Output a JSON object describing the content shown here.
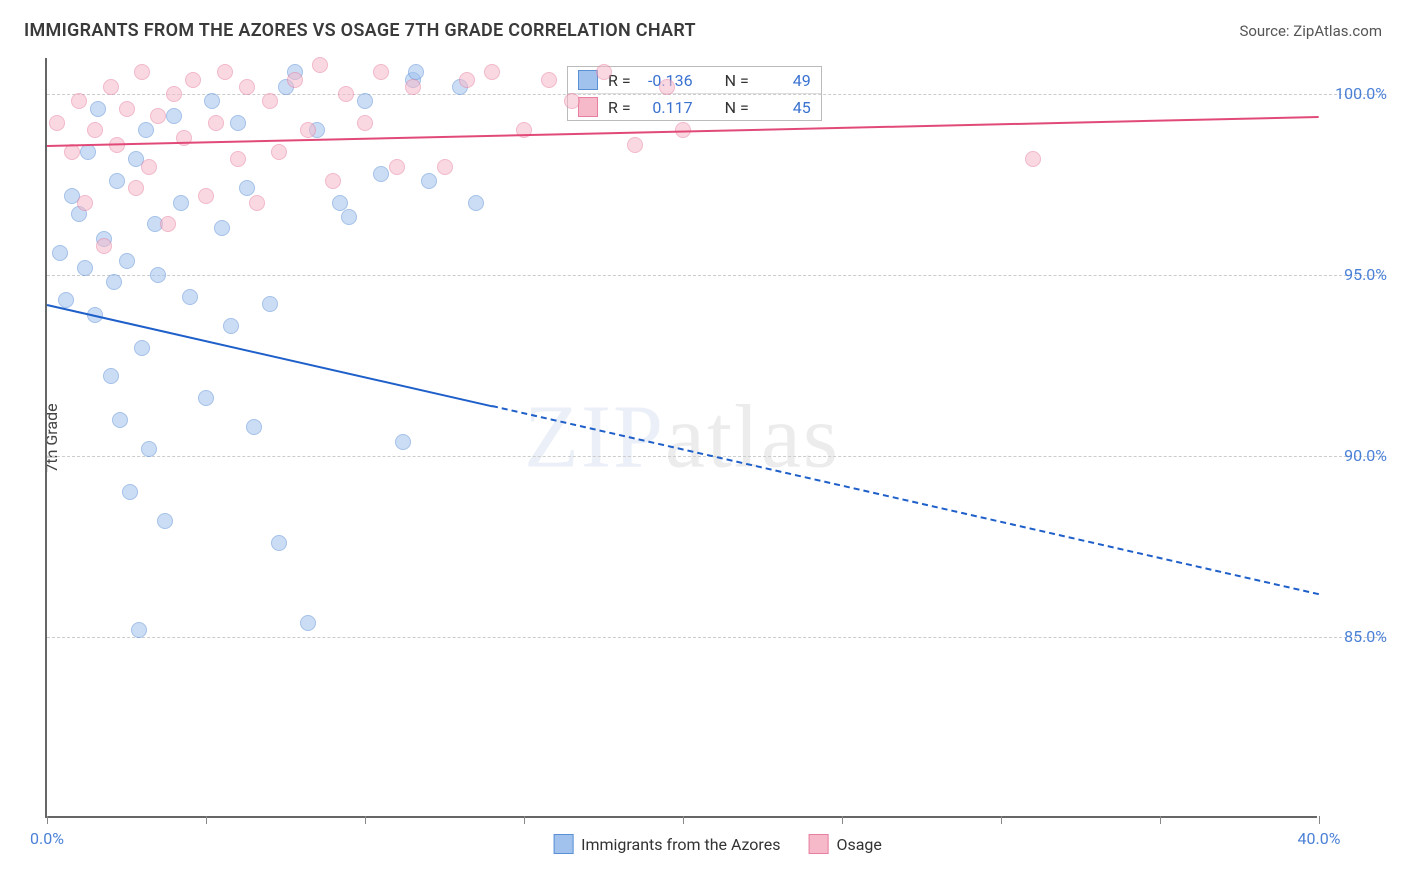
{
  "title": "IMMIGRANTS FROM THE AZORES VS OSAGE 7TH GRADE CORRELATION CHART",
  "source_label": "Source: ",
  "source_name": "ZipAtlas.com",
  "yaxis_title": "7th Grade",
  "watermark_bold": "ZIP",
  "watermark_thin": "atlas",
  "chart": {
    "type": "scatter-with-regression",
    "background_color": "#ffffff",
    "grid_color": "#cccccc",
    "axis_color": "#666666",
    "xmin": 0,
    "xmax": 40,
    "ymin": 80,
    "ymax": 101,
    "yticks": [
      85,
      90,
      95,
      100
    ],
    "ytick_labels": [
      "85.0%",
      "90.0%",
      "95.0%",
      "100.0%"
    ],
    "xticks": [
      0,
      5,
      10,
      15,
      20,
      25,
      30,
      35,
      40
    ],
    "xtick_labels_show": [
      0,
      40
    ],
    "xtick_labels": {
      "0": "0.0%",
      "40": "40.0%"
    },
    "point_radius": 8,
    "point_opacity": 0.55,
    "series": [
      {
        "name": "Immigrants from the Azores",
        "color_fill": "#a2c2ee",
        "color_stroke": "#5b8fd6",
        "R": "-0.136",
        "N": "49",
        "regression": {
          "x1": 0,
          "y1": 94.2,
          "x2": 40,
          "y2": 86.2,
          "color": "#1e5fc9",
          "width": 2.5,
          "dash_after_x": 14
        },
        "points": [
          [
            0.4,
            95.6
          ],
          [
            0.6,
            94.3
          ],
          [
            0.8,
            97.2
          ],
          [
            1.0,
            96.7
          ],
          [
            1.2,
            95.2
          ],
          [
            1.3,
            98.4
          ],
          [
            1.5,
            93.9
          ],
          [
            1.6,
            99.6
          ],
          [
            1.8,
            96.0
          ],
          [
            2.0,
            92.2
          ],
          [
            2.1,
            94.8
          ],
          [
            2.2,
            97.6
          ],
          [
            2.3,
            91.0
          ],
          [
            2.5,
            95.4
          ],
          [
            2.6,
            89.0
          ],
          [
            2.8,
            98.2
          ],
          [
            3.0,
            93.0
          ],
          [
            3.1,
            99.0
          ],
          [
            3.2,
            90.2
          ],
          [
            3.4,
            96.4
          ],
          [
            3.5,
            95.0
          ],
          [
            3.7,
            88.2
          ],
          [
            4.0,
            99.4
          ],
          [
            4.2,
            97.0
          ],
          [
            4.5,
            94.4
          ],
          [
            5.0,
            91.6
          ],
          [
            5.2,
            99.8
          ],
          [
            5.5,
            96.3
          ],
          [
            5.8,
            93.6
          ],
          [
            6.0,
            99.2
          ],
          [
            6.3,
            97.4
          ],
          [
            6.5,
            90.8
          ],
          [
            7.0,
            94.2
          ],
          [
            7.3,
            87.6
          ],
          [
            7.5,
            100.2
          ],
          [
            7.8,
            100.6
          ],
          [
            8.2,
            85.4
          ],
          [
            8.5,
            99.0
          ],
          [
            2.9,
            85.2
          ],
          [
            9.2,
            97.0
          ],
          [
            9.5,
            96.6
          ],
          [
            10.0,
            99.8
          ],
          [
            10.5,
            97.8
          ],
          [
            11.2,
            90.4
          ],
          [
            11.5,
            100.4
          ],
          [
            11.6,
            100.6
          ],
          [
            12.0,
            97.6
          ],
          [
            13.0,
            100.2
          ],
          [
            13.5,
            97.0
          ]
        ]
      },
      {
        "name": "Osage",
        "color_fill": "#f6b9ca",
        "color_stroke": "#e77fa0",
        "R": "0.117",
        "N": "45",
        "regression": {
          "x1": 0,
          "y1": 98.6,
          "x2": 40,
          "y2": 99.4,
          "color": "#e14a78",
          "width": 2.5,
          "dash_after_x": 40
        },
        "points": [
          [
            0.3,
            99.2
          ],
          [
            0.8,
            98.4
          ],
          [
            1.0,
            99.8
          ],
          [
            1.2,
            97.0
          ],
          [
            1.5,
            99.0
          ],
          [
            1.8,
            95.8
          ],
          [
            2.0,
            100.2
          ],
          [
            2.2,
            98.6
          ],
          [
            2.5,
            99.6
          ],
          [
            2.8,
            97.4
          ],
          [
            3.0,
            100.6
          ],
          [
            3.2,
            98.0
          ],
          [
            3.5,
            99.4
          ],
          [
            3.8,
            96.4
          ],
          [
            4.0,
            100.0
          ],
          [
            4.3,
            98.8
          ],
          [
            4.6,
            100.4
          ],
          [
            5.0,
            97.2
          ],
          [
            5.3,
            99.2
          ],
          [
            5.6,
            100.6
          ],
          [
            6.0,
            98.2
          ],
          [
            6.3,
            100.2
          ],
          [
            6.6,
            97.0
          ],
          [
            7.0,
            99.8
          ],
          [
            7.3,
            98.4
          ],
          [
            7.8,
            100.4
          ],
          [
            8.2,
            99.0
          ],
          [
            8.6,
            100.8
          ],
          [
            9.0,
            97.6
          ],
          [
            9.4,
            100.0
          ],
          [
            10.0,
            99.2
          ],
          [
            10.5,
            100.6
          ],
          [
            11.0,
            98.0
          ],
          [
            11.5,
            100.2
          ],
          [
            12.5,
            98.0
          ],
          [
            13.2,
            100.4
          ],
          [
            14.0,
            100.6
          ],
          [
            15.0,
            99.0
          ],
          [
            15.8,
            100.4
          ],
          [
            16.5,
            99.8
          ],
          [
            17.5,
            100.6
          ],
          [
            18.5,
            98.6
          ],
          [
            19.5,
            100.2
          ],
          [
            20.0,
            99.0
          ],
          [
            31.0,
            98.2
          ]
        ]
      }
    ]
  },
  "stats_labels": {
    "R": "R =",
    "N": "N ="
  },
  "bottom_legend": [
    {
      "label": "Immigrants from the Azores",
      "fill": "#a2c2ee",
      "stroke": "#5b8fd6"
    },
    {
      "label": "Osage",
      "fill": "#f6b9ca",
      "stroke": "#e77fa0"
    }
  ]
}
